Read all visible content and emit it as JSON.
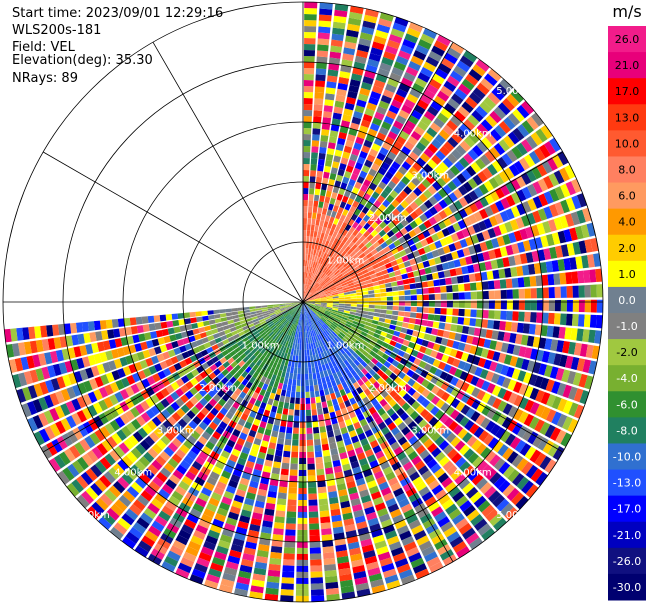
{
  "info": {
    "start_time": "Start time: 2023/09/01 12:29:16",
    "instrument": "WLS200s-181",
    "field": "Field: VEL",
    "elevation": "Elevation(deg): 35.30",
    "nrays": "NRays: 89"
  },
  "chart_data": {
    "type": "heatmap",
    "projection": "polar-ppi",
    "range_rings_km": [
      1,
      2,
      3,
      4,
      5
    ],
    "ring_labels": [
      "1.00km",
      "2.00km",
      "3.00km",
      "4.00km",
      "5.00km"
    ],
    "spokes_deg": [
      0,
      30,
      60,
      90,
      120,
      150,
      180,
      210,
      240,
      270,
      300,
      330
    ],
    "clean_region_max_km": 1.3,
    "sector_start_deg": 0,
    "sector_end_deg": 265,
    "nrays": 89,
    "quadrant_pattern_deg": [
      {
        "from": 0,
        "to": 78,
        "value": 10.0
      },
      {
        "from": 78,
        "to": 92,
        "value": 2.0
      },
      {
        "from": 92,
        "to": 105,
        "value": 0.0
      },
      {
        "from": 105,
        "to": 135,
        "value": -4.0
      },
      {
        "from": 135,
        "to": 195,
        "value": -10.0
      },
      {
        "from": 195,
        "to": 240,
        "value": -6.0
      },
      {
        "from": 240,
        "to": 265,
        "value": -1.0
      }
    ]
  },
  "colorbar": {
    "unit": "m/s",
    "ticks": [
      "26.0",
      "21.0",
      "17.0",
      "13.0",
      "10.0",
      "8.0",
      "6.0",
      "4.0",
      "2.0",
      "1.0",
      "0.0",
      "-1.0",
      "-2.0",
      "-4.0",
      "-6.0",
      "-8.0",
      "-10.0",
      "-13.0",
      "-17.0",
      "-21.0",
      "-26.0",
      "-30.0"
    ],
    "colors": [
      "#f21c8a",
      "#e8007a",
      "#ff0000",
      "#ff3a10",
      "#ff5a30",
      "#ff8060",
      "#ff9a60",
      "#ff9900",
      "#ffcc00",
      "#ffff00",
      "#708090",
      "#808080",
      "#a0c840",
      "#78b030",
      "#309030",
      "#208060",
      "#3070d0",
      "#2050ff",
      "#0000ff",
      "#0000c0",
      "#101080",
      "#000070"
    ]
  }
}
